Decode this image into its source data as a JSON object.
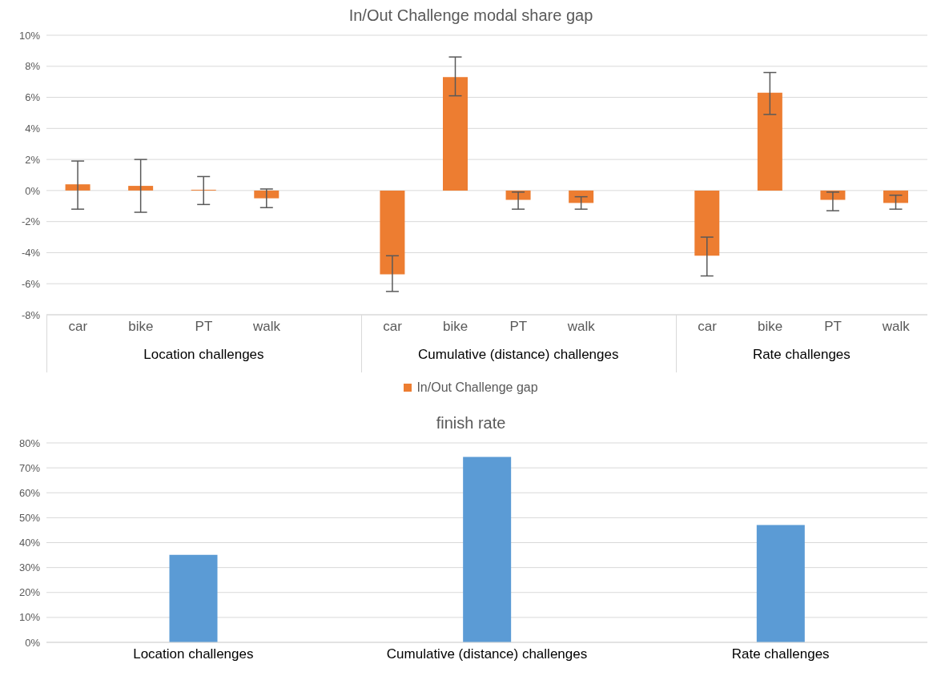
{
  "chart_data": [
    {
      "type": "bar",
      "title": "In/Out Challenge modal share gap",
      "categories": [
        "car",
        "bike",
        "PT",
        "walk",
        null,
        "car",
        "bike",
        "PT",
        "walk",
        null,
        "car",
        "bike",
        "PT",
        "walk"
      ],
      "series": [
        {
          "name": "In/Out Challenge gap",
          "color": "#ed7d31",
          "values": [
            0.4,
            0.3,
            0,
            -0.5,
            null,
            -5.4,
            7.3,
            -0.6,
            -0.8,
            null,
            -4.2,
            6.3,
            -0.6,
            -0.8
          ],
          "errors": [
            [
              -1.2,
              1.9
            ],
            [
              -1.4,
              2.0
            ],
            [
              -0.9,
              0.9
            ],
            [
              -1.1,
              0.1
            ],
            null,
            [
              -6.5,
              -4.2
            ],
            [
              6.1,
              8.6
            ],
            [
              -1.2,
              -0.1
            ],
            [
              -1.2,
              -0.4
            ],
            null,
            [
              -5.5,
              -3.0
            ],
            [
              4.9,
              7.6
            ],
            [
              -1.3,
              -0.1
            ],
            [
              -1.2,
              -0.3
            ]
          ]
        }
      ],
      "ylim": [
        -8,
        10
      ],
      "yticks": [
        {
          "value": -8,
          "label": "-8%"
        },
        {
          "value": -6,
          "label": "-6%"
        },
        {
          "value": -4,
          "label": "-4%"
        },
        {
          "value": -2,
          "label": "-2%"
        },
        {
          "value": 0,
          "label": "0%"
        },
        {
          "value": 2,
          "label": "2%"
        },
        {
          "value": 4,
          "label": "4%"
        },
        {
          "value": 6,
          "label": "6%"
        },
        {
          "value": 8,
          "label": "8%"
        },
        {
          "value": 10,
          "label": "10%"
        }
      ],
      "grid": "y",
      "legend": "bottom",
      "annotations": [
        "Location  challenges",
        "Cumulative (distance)  challenges",
        "Rate  challenges"
      ]
    },
    {
      "type": "bar",
      "title": "finish rate",
      "categories": [
        "Location  challenges",
        "Cumulative (distance)  challenges",
        "Rate  challenges"
      ],
      "values": [
        35.1,
        74.4,
        47.1
      ],
      "color": "#5b9bd5",
      "ylim": [
        0,
        80
      ],
      "yticks": [
        {
          "value": 0,
          "label": "0%"
        },
        {
          "value": 10,
          "label": "10%"
        },
        {
          "value": 20,
          "label": "20%"
        },
        {
          "value": 30,
          "label": "30%"
        },
        {
          "value": 40,
          "label": "40%"
        },
        {
          "value": 50,
          "label": "50%"
        },
        {
          "value": 60,
          "label": "60%"
        },
        {
          "value": 70,
          "label": "70%"
        },
        {
          "value": 80,
          "label": "80%"
        }
      ],
      "grid": "y"
    }
  ]
}
